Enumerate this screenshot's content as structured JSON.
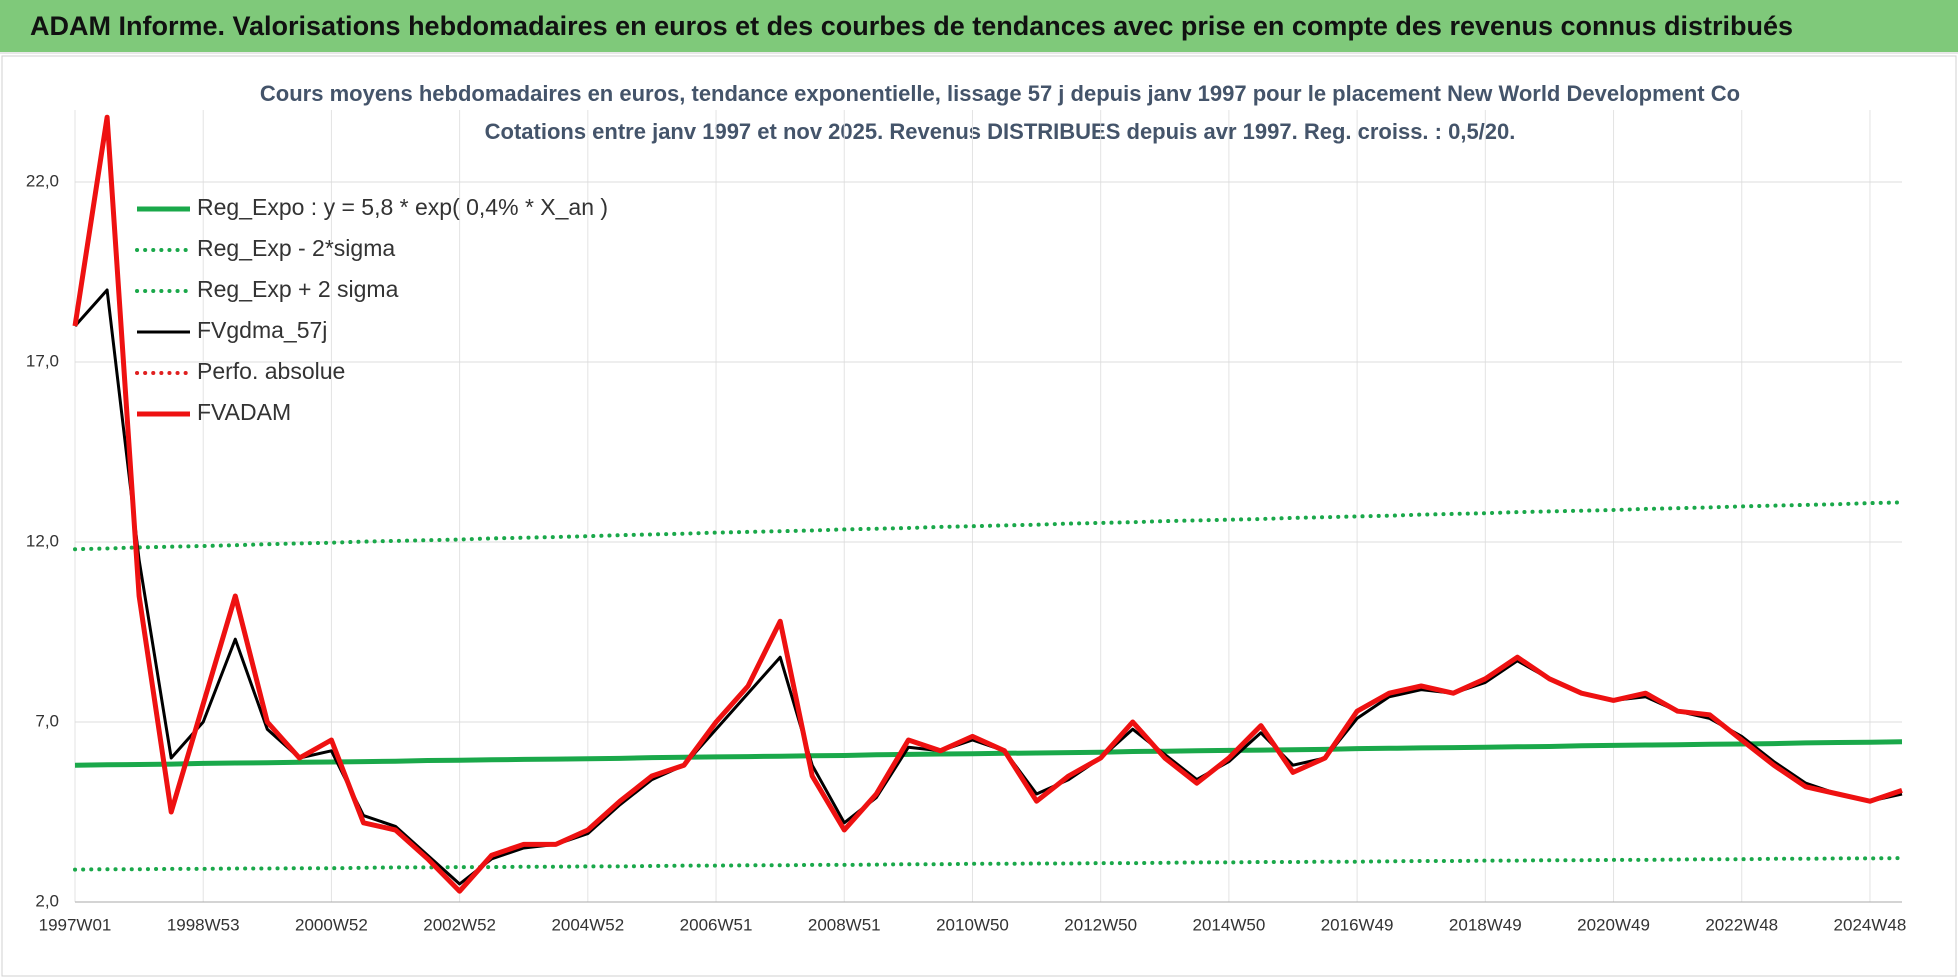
{
  "header": {
    "title": "ADAM Informe. Valorisations hebdomadaires en euros et des courbes de tendances avec prise en compte des revenus connus distribués"
  },
  "chart_data": {
    "type": "line",
    "title": "Cours moyens hebdomadaires en euros, tendance exponentielle, lissage 57 j depuis janv 1997 pour le placement New World Development Co",
    "subtitle": "Cotations entre janv 1997 et nov 2025. Revenus DISTRIBUES depuis avr 1997. Reg. croiss. : 0,5/20.",
    "categories": [
      "1997W01",
      null,
      null,
      null,
      "1998W53",
      null,
      null,
      null,
      "2000W52",
      null,
      null,
      null,
      "2002W52",
      null,
      null,
      null,
      "2004W52",
      null,
      null,
      null,
      "2006W51",
      null,
      null,
      null,
      "2008W51",
      null,
      null,
      null,
      "2010W50",
      null,
      null,
      null,
      "2012W50",
      null,
      null,
      null,
      "2014W50",
      null,
      null,
      null,
      "2016W49",
      null,
      null,
      null,
      "2018W49",
      null,
      null,
      null,
      "2020W49",
      null,
      null,
      null,
      "2022W48",
      null,
      null,
      null,
      "2024W48",
      null
    ],
    "ylim": [
      2,
      24
    ],
    "yticks": [
      {
        "value": 2,
        "label": "2,0"
      },
      {
        "value": 7,
        "label": "7,0"
      },
      {
        "value": 12,
        "label": "12,0"
      },
      {
        "value": 17,
        "label": "17,0"
      },
      {
        "value": 22,
        "label": "22,0"
      }
    ],
    "grid": true,
    "legend": "top-left",
    "series": [
      {
        "name": "Reg_Expo : y = 5,8 * exp( 0,4% *  X_an )",
        "color": "#1aa84a",
        "style": "solid",
        "values": [
          5.8,
          5.81,
          5.82,
          5.83,
          5.85,
          5.86,
          5.87,
          5.88,
          5.89,
          5.9,
          5.91,
          5.93,
          5.94,
          5.95,
          5.96,
          5.97,
          5.98,
          5.99,
          6.01,
          6.02,
          6.03,
          6.04,
          6.05,
          6.06,
          6.07,
          6.09,
          6.1,
          6.11,
          6.12,
          6.13,
          6.14,
          6.15,
          6.16,
          6.18,
          6.19,
          6.2,
          6.21,
          6.22,
          6.23,
          6.24,
          6.26,
          6.27,
          6.28,
          6.29,
          6.3,
          6.31,
          6.32,
          6.34,
          6.35,
          6.36,
          6.37,
          6.38,
          6.39,
          6.4,
          6.42,
          6.43,
          6.44,
          6.45
        ]
      },
      {
        "name": "Reg_Exp - 2*sigma",
        "color": "#1aa84a",
        "style": "dotted",
        "values": [
          2.9,
          2.91,
          2.91,
          2.92,
          2.92,
          2.93,
          2.93,
          2.94,
          2.94,
          2.95,
          2.96,
          2.96,
          2.97,
          2.97,
          2.98,
          2.98,
          2.99,
          2.99,
          3.0,
          3.01,
          3.01,
          3.02,
          3.02,
          3.03,
          3.03,
          3.04,
          3.05,
          3.05,
          3.06,
          3.06,
          3.07,
          3.07,
          3.08,
          3.08,
          3.09,
          3.1,
          3.1,
          3.11,
          3.11,
          3.12,
          3.12,
          3.13,
          3.14,
          3.14,
          3.15,
          3.15,
          3.16,
          3.16,
          3.17,
          3.17,
          3.18,
          3.19,
          3.19,
          3.2,
          3.2,
          3.21,
          3.21,
          3.22
        ]
      },
      {
        "name": "Reg_Exp + 2 sigma",
        "color": "#1aa84a",
        "style": "dotted",
        "values": [
          11.8,
          11.82,
          11.85,
          11.87,
          11.89,
          11.91,
          11.94,
          11.96,
          11.98,
          12.01,
          12.03,
          12.05,
          12.07,
          12.1,
          12.12,
          12.14,
          12.16,
          12.19,
          12.21,
          12.23,
          12.26,
          12.28,
          12.3,
          12.32,
          12.35,
          12.37,
          12.39,
          12.42,
          12.44,
          12.46,
          12.48,
          12.51,
          12.53,
          12.55,
          12.58,
          12.6,
          12.62,
          12.64,
          12.67,
          12.69,
          12.71,
          12.73,
          12.76,
          12.78,
          12.8,
          12.83,
          12.85,
          12.87,
          12.89,
          12.92,
          12.94,
          12.96,
          12.99,
          13.01,
          13.03,
          13.05,
          13.08,
          13.1
        ]
      },
      {
        "name": "FVgdma_57j",
        "color": "#000000",
        "style": "solid",
        "values": [
          18.0,
          19.0,
          11.5,
          6.0,
          7.0,
          9.3,
          6.8,
          6.0,
          6.2,
          4.4,
          4.1,
          3.3,
          2.5,
          3.2,
          3.5,
          3.6,
          3.9,
          4.7,
          5.4,
          5.8,
          6.8,
          7.8,
          8.8,
          5.8,
          4.2,
          4.9,
          6.3,
          6.2,
          6.5,
          6.2,
          5.0,
          5.4,
          6.0,
          6.8,
          6.1,
          5.4,
          5.9,
          6.7,
          5.8,
          6.0,
          7.1,
          7.7,
          7.9,
          7.8,
          8.1,
          8.7,
          8.2,
          7.8,
          7.6,
          7.7,
          7.3,
          7.1,
          6.6,
          5.9,
          5.3,
          5.0,
          4.8,
          5.0
        ]
      },
      {
        "name": "Perfo. absolue",
        "color": "#e02020",
        "style": "dotted",
        "values": [
          null,
          null,
          null,
          null,
          null,
          null,
          null,
          null,
          null,
          null,
          null,
          null,
          null,
          null,
          null,
          null,
          null,
          null,
          null,
          null,
          null,
          null,
          null,
          null,
          null,
          null,
          null,
          null,
          null,
          null,
          null,
          null,
          null,
          null,
          null,
          null,
          null,
          null,
          null,
          null,
          null,
          null,
          null,
          null,
          null,
          null,
          null,
          null,
          null,
          null,
          null,
          null,
          null,
          null,
          null,
          null,
          null,
          null
        ]
      },
      {
        "name": "FVADAM",
        "color": "#ee1111",
        "style": "solid",
        "values": [
          18.0,
          23.8,
          10.5,
          4.5,
          7.5,
          10.5,
          7.0,
          6.0,
          6.5,
          4.2,
          4.0,
          3.2,
          2.3,
          3.3,
          3.6,
          3.6,
          4.0,
          4.8,
          5.5,
          5.8,
          7.0,
          8.0,
          9.8,
          5.5,
          4.0,
          5.0,
          6.5,
          6.2,
          6.6,
          6.2,
          4.8,
          5.5,
          6.0,
          7.0,
          6.0,
          5.3,
          6.0,
          6.9,
          5.6,
          6.0,
          7.3,
          7.8,
          8.0,
          7.8,
          8.2,
          8.8,
          8.2,
          7.8,
          7.6,
          7.8,
          7.3,
          7.2,
          6.5,
          5.8,
          5.2,
          5.0,
          4.8,
          5.1
        ]
      }
    ]
  }
}
